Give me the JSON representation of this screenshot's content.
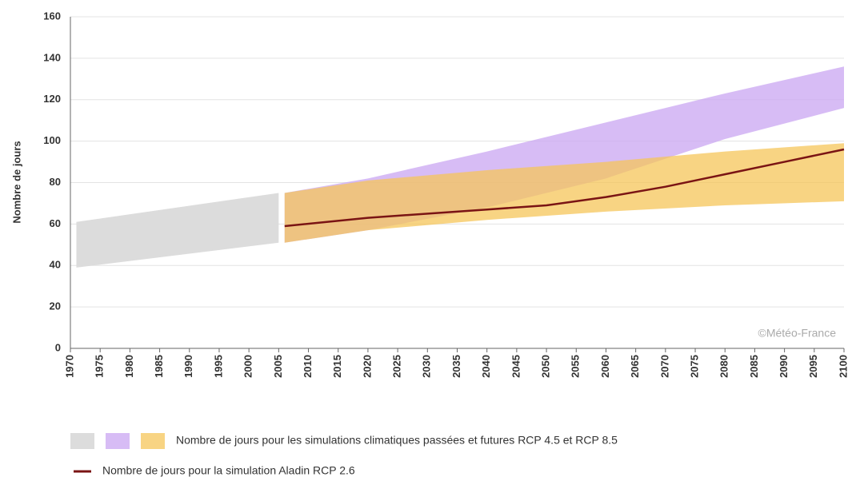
{
  "chart_data": {
    "type": "line",
    "y_label": "Nombre de jours",
    "annotation": "©Météo-France",
    "xlim": [
      1970,
      2100
    ],
    "ylim": [
      0,
      160
    ],
    "xticks": [
      1970,
      1975,
      1980,
      1985,
      1990,
      1995,
      2000,
      2005,
      2010,
      2015,
      2020,
      2025,
      2030,
      2035,
      2040,
      2045,
      2050,
      2055,
      2060,
      2065,
      2070,
      2075,
      2080,
      2085,
      2090,
      2095,
      2100
    ],
    "yticks": [
      0,
      20,
      40,
      60,
      80,
      100,
      120,
      140,
      160
    ],
    "grid": true,
    "band_legend": "Nombre de jours pour les simulations climatiques passées et futures RCP 4.5 et RCP 8.5",
    "bands": [
      {
        "color": "#dcdcdc",
        "x": [
          1971,
          2005
        ],
        "lower": [
          39,
          51
        ],
        "upper": [
          61,
          75
        ]
      },
      {
        "color": "#c9a6f2",
        "x": [
          2006,
          2020,
          2040,
          2060,
          2080,
          2100
        ],
        "lower": [
          51,
          57,
          68,
          82,
          101,
          116
        ],
        "upper": [
          75,
          82,
          95,
          109,
          123,
          136
        ]
      },
      {
        "color": "#f5c55a",
        "x": [
          2006,
          2020,
          2040,
          2060,
          2080,
          2100
        ],
        "lower": [
          51,
          57,
          62,
          66,
          69,
          71
        ],
        "upper": [
          75,
          81,
          86,
          90,
          95,
          99
        ]
      }
    ],
    "series": [
      {
        "name": "Nombre de jours pour la simulation Aladin RCP 2.6",
        "color": "#7a1414",
        "x": [
          2006,
          2020,
          2040,
          2050,
          2060,
          2070,
          2080,
          2090,
          2100
        ],
        "values": [
          59,
          63,
          67,
          69,
          73,
          78,
          84,
          90,
          96
        ]
      }
    ]
  }
}
